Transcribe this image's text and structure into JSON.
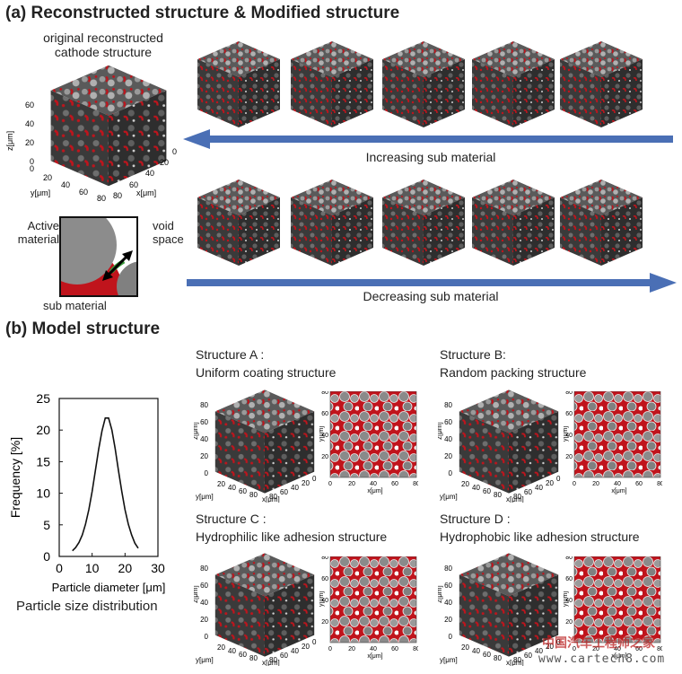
{
  "section_a": {
    "title": "(a) Reconstructed structure &  Modified structure",
    "original_caption_line1": "original reconstructed",
    "original_caption_line2": "cathode structure",
    "axis_z": "z[μm]",
    "axis_y": "y[μm]",
    "axis_x": "x[μm]",
    "z_ticks": [
      "0",
      "20",
      "40",
      "60"
    ],
    "y_ticks": [
      "0",
      "20",
      "40",
      "60",
      "80"
    ],
    "x_ticks": [
      "0",
      "20",
      "40",
      "60",
      "80"
    ],
    "arrow_increasing": "Increasing sub material",
    "arrow_decreasing": "Decreasing sub material",
    "schematic": {
      "active_label_line1": "Active",
      "active_label_line2": "material",
      "void_label_line1": "void",
      "void_label_line2": "space",
      "sub_label": "sub material"
    }
  },
  "section_b": {
    "title": "(b) Model structure",
    "structures": [
      {
        "name": "Structure A :",
        "desc": "Uniform coating structure"
      },
      {
        "name": "Structure B:",
        "desc": "Random packing structure"
      },
      {
        "name": "Structure C :",
        "desc": "Hydrophilic like adhesion structure"
      },
      {
        "name": "Structure D :",
        "desc": "Hydrophobic like adhesion structure"
      }
    ],
    "cube_ticks_z": [
      "0",
      "20",
      "40",
      "60",
      "80"
    ],
    "cube_ticks_xy": [
      "0",
      "20",
      "40",
      "60",
      "80"
    ],
    "slice_axis_x": "x[μm]",
    "slice_axis_y": "y[μm]",
    "slice_ticks": [
      "0",
      "20",
      "40",
      "60",
      "80"
    ]
  },
  "chart_data": {
    "type": "line",
    "title": "Particle size distribution",
    "xlabel": "Particle diameter [μm]",
    "ylabel": "Frequency [%]",
    "xlim": [
      0,
      30
    ],
    "ylim": [
      0,
      25
    ],
    "xticks": [
      0,
      10,
      20,
      30
    ],
    "yticks": [
      0,
      5,
      10,
      15,
      20,
      25
    ],
    "series": [
      {
        "x": [
          4,
          5,
          6,
          7,
          8,
          9,
          10,
          11,
          12,
          13,
          14,
          15,
          16,
          17,
          18,
          19,
          20,
          21,
          22,
          23,
          24
        ],
        "values": [
          0.9,
          1.4,
          2.2,
          3.4,
          5.1,
          7.4,
          10.3,
          13.6,
          17.0,
          19.9,
          21.9,
          21.9,
          20.0,
          17.1,
          13.6,
          10.3,
          7.4,
          5.1,
          3.4,
          2.1,
          1.3
        ]
      }
    ]
  },
  "watermark": {
    "line1": "中国汽车工程师之家",
    "line2": "www.cartech8.com"
  },
  "colors": {
    "sub_material": "#c0141c",
    "active_material": "#8c8c8c",
    "cube_dark": "#3a3a3a",
    "arrow": "#4a6fb5",
    "sub_green": "#3a9a3a"
  }
}
